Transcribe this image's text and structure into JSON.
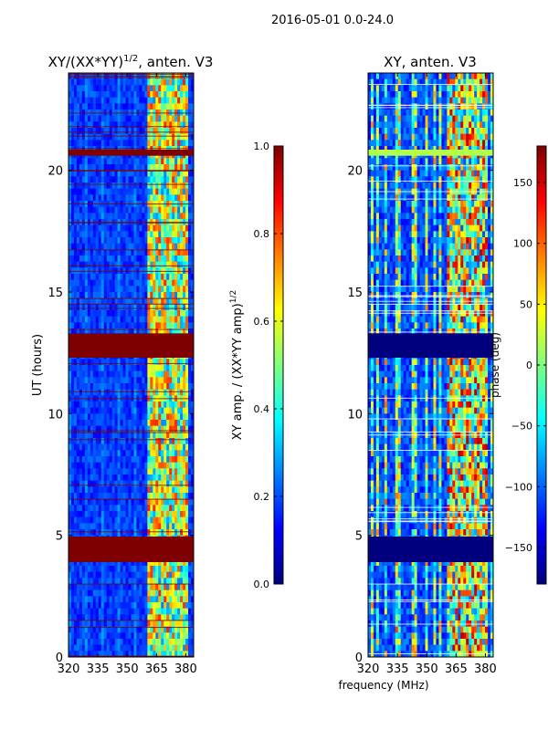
{
  "figure_title": "2016-05-01 0.0-24.0",
  "colors": {
    "jet": [
      "#00007f",
      "#0000ff",
      "#007fff",
      "#00ffff",
      "#7fff7f",
      "#ffff00",
      "#ff7f00",
      "#ff0000",
      "#7f0000"
    ],
    "flag_dark_red": "#7f0000",
    "flag_dark_blue": "#00007f",
    "cut_white": "#ffffff"
  },
  "chart_data": [
    {
      "type": "heatmap",
      "title_prefix": "XY/(XX*YY)",
      "title_exp": "1/2",
      "title_suffix": ", anten. V3",
      "xlabel": "",
      "ylabel": "UT (hours)",
      "x_ticks": [
        "320",
        "335",
        "350",
        "365",
        "380"
      ],
      "x_tick_values": [
        320,
        335,
        350,
        365,
        380
      ],
      "y_ticks": [
        "0",
        "5",
        "10",
        "15",
        "20"
      ],
      "y_tick_values": [
        0,
        5,
        10,
        15,
        20
      ],
      "xlim": [
        320,
        384
      ],
      "ylim": [
        0,
        24
      ],
      "colorbar": {
        "label_prefix": "XY amp. / (XX*YY amp)",
        "label_exp": "1/2",
        "range": [
          0,
          1
        ],
        "ticks": [
          "0.0",
          "0.2",
          "0.4",
          "0.6",
          "0.8",
          "1.0"
        ],
        "tick_values": [
          0,
          0.2,
          0.4,
          0.6,
          0.8,
          1.0
        ]
      },
      "flagged_bands_hours": [
        [
          0.0,
          0.05
        ],
        [
          3.9,
          4.95
        ],
        [
          12.3,
          13.3
        ],
        [
          20.6,
          20.85
        ]
      ],
      "bright_freq_range_mhz": [
        360,
        381
      ]
    },
    {
      "type": "heatmap",
      "title": "XY, anten. V3",
      "xlabel": "frequency (MHz)",
      "ylabel": "",
      "x_ticks": [
        "320",
        "335",
        "350",
        "365",
        "380"
      ],
      "x_tick_values": [
        320,
        335,
        350,
        365,
        380
      ],
      "y_ticks": [
        "0",
        "5",
        "10",
        "15",
        "20"
      ],
      "y_tick_values": [
        0,
        5,
        10,
        15,
        20
      ],
      "xlim": [
        320,
        384
      ],
      "ylim": [
        0,
        24
      ],
      "colorbar": {
        "label": "phase (deg)",
        "range": [
          -180,
          180
        ],
        "ticks": [
          "−150",
          "−100",
          "−50",
          "0",
          "50",
          "100",
          "150"
        ],
        "tick_values": [
          -150,
          -100,
          -50,
          0,
          50,
          100,
          150
        ]
      },
      "flagged_bands_hours": [
        [
          3.9,
          4.95
        ],
        [
          12.3,
          13.3
        ]
      ],
      "constant_phase_bands_hours": [
        [
          20.6,
          20.85
        ]
      ],
      "bright_freq_range_mhz": [
        360,
        381
      ]
    }
  ]
}
